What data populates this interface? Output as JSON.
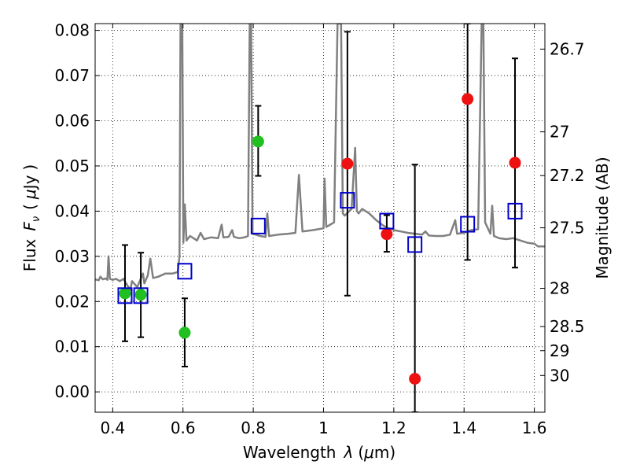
{
  "chart_data": {
    "type": "scatter",
    "xlabel_parts": [
      "Wavelength",
      "λ",
      "(",
      "μ",
      "m)"
    ],
    "ylabel_parts": [
      "Flux",
      "F",
      "ν",
      "(",
      "μ",
      "Jy",
      ")"
    ],
    "y2label": "Magnitude (AB)",
    "xlim": [
      0.35,
      1.63
    ],
    "ylim": [
      -0.0045,
      0.0815
    ],
    "x_ticks": [
      0.4,
      0.6,
      0.8,
      1.0,
      1.2,
      1.4,
      1.6
    ],
    "x_tick_labels": [
      "0.4",
      "0.6",
      "0.8",
      "1",
      "1.2",
      "1.4",
      "1.6"
    ],
    "y_ticks": [
      0.0,
      0.01,
      0.02,
      0.03,
      0.04,
      0.05,
      0.06,
      0.07,
      0.08
    ],
    "y_tick_labels": [
      "0.00",
      "0.01",
      "0.02",
      "0.03",
      "0.04",
      "0.05",
      "0.06",
      "0.07",
      "0.08"
    ],
    "mag_ticks": [
      26.7,
      27,
      27.2,
      27.5,
      28,
      28.5,
      29,
      30
    ],
    "mag_tick_labels": [
      "26.7",
      "27",
      "27.2",
      "27.5",
      "28",
      "28.5",
      "29",
      "30"
    ],
    "grid": true,
    "colors": {
      "green": "#1fc01f",
      "red": "#ee1111",
      "blue": "#0000cc",
      "template": "#808080",
      "errorbar": "#000000"
    },
    "series": [
      {
        "marker": "circle",
        "color": "green",
        "points": [
          {
            "x": 0.435,
            "y": 0.0218,
            "ylo": 0.0112,
            "yhi": 0.0325
          },
          {
            "x": 0.48,
            "y": 0.0215,
            "ylo": 0.0121,
            "yhi": 0.0308
          },
          {
            "x": 0.605,
            "y": 0.0131,
            "ylo": 0.0056,
            "yhi": 0.0207
          },
          {
            "x": 0.814,
            "y": 0.0554,
            "ylo": 0.0478,
            "yhi": 0.0633
          }
        ]
      },
      {
        "marker": "circle",
        "color": "red",
        "points": [
          {
            "x": 1.068,
            "y": 0.0505,
            "ylo": 0.0213,
            "yhi": 0.0797
          },
          {
            "x": 1.18,
            "y": 0.0349,
            "ylo": 0.031,
            "yhi": 0.0391
          },
          {
            "x": 1.26,
            "y": 0.0029,
            "ylo": -0.0045,
            "yhi": 0.0503
          },
          {
            "x": 1.41,
            "y": 0.0648,
            "ylo": 0.0292,
            "yhi": 0.0815
          },
          {
            "x": 1.545,
            "y": 0.0507,
            "ylo": 0.0275,
            "yhi": 0.0738
          }
        ]
      },
      {
        "marker": "open-square",
        "color": "blue",
        "points": [
          {
            "x": 0.435,
            "y": 0.0213
          },
          {
            "x": 0.48,
            "y": 0.0213
          },
          {
            "x": 0.605,
            "y": 0.0267
          },
          {
            "x": 0.814,
            "y": 0.0367
          },
          {
            "x": 1.068,
            "y": 0.0424
          },
          {
            "x": 1.18,
            "y": 0.0378
          },
          {
            "x": 1.26,
            "y": 0.0326
          },
          {
            "x": 1.41,
            "y": 0.0371
          },
          {
            "x": 1.545,
            "y": 0.04
          }
        ]
      }
    ],
    "template_spectrum": [
      [
        0.35,
        0.0249
      ],
      [
        0.36,
        0.0247
      ],
      [
        0.365,
        0.0255
      ],
      [
        0.372,
        0.0249
      ],
      [
        0.38,
        0.0251
      ],
      [
        0.385,
        0.0248
      ],
      [
        0.388,
        0.03
      ],
      [
        0.392,
        0.025
      ],
      [
        0.4,
        0.0248
      ],
      [
        0.41,
        0.025
      ],
      [
        0.42,
        0.0245
      ],
      [
        0.43,
        0.025
      ],
      [
        0.44,
        0.0238
      ],
      [
        0.45,
        0.0225
      ],
      [
        0.455,
        0.0245
      ],
      [
        0.47,
        0.0232
      ],
      [
        0.486,
        0.0262
      ],
      [
        0.49,
        0.024
      ],
      [
        0.5,
        0.0258
      ],
      [
        0.507,
        0.0295
      ],
      [
        0.515,
        0.0252
      ],
      [
        0.53,
        0.0255
      ],
      [
        0.55,
        0.0262
      ],
      [
        0.57,
        0.0262
      ],
      [
        0.585,
        0.0265
      ],
      [
        0.59,
        0.03
      ],
      [
        0.593,
        0.0815
      ],
      [
        0.598,
        0.0815
      ],
      [
        0.601,
        0.033
      ],
      [
        0.605,
        0.0415
      ],
      [
        0.61,
        0.0335
      ],
      [
        0.62,
        0.0345
      ],
      [
        0.63,
        0.034
      ],
      [
        0.64,
        0.0335
      ],
      [
        0.65,
        0.0352
      ],
      [
        0.66,
        0.0338
      ],
      [
        0.68,
        0.0342
      ],
      [
        0.7,
        0.034
      ],
      [
        0.71,
        0.037
      ],
      [
        0.715,
        0.0342
      ],
      [
        0.73,
        0.0343
      ],
      [
        0.74,
        0.0358
      ],
      [
        0.745,
        0.0343
      ],
      [
        0.76,
        0.034
      ],
      [
        0.775,
        0.0342
      ],
      [
        0.785,
        0.0345
      ],
      [
        0.79,
        0.0815
      ],
      [
        0.794,
        0.0815
      ],
      [
        0.798,
        0.035
      ],
      [
        0.82,
        0.0345
      ],
      [
        0.835,
        0.0343
      ],
      [
        0.84,
        0.0395
      ],
      [
        0.845,
        0.0345
      ],
      [
        0.87,
        0.0348
      ],
      [
        0.9,
        0.035
      ],
      [
        0.92,
        0.0352
      ],
      [
        0.93,
        0.048
      ],
      [
        0.94,
        0.0355
      ],
      [
        0.97,
        0.0358
      ],
      [
        1.0,
        0.0362
      ],
      [
        1.003,
        0.0472
      ],
      [
        1.008,
        0.0365
      ],
      [
        1.03,
        0.0375
      ],
      [
        1.04,
        0.0815
      ],
      [
        1.05,
        0.0815
      ],
      [
        1.055,
        0.0395
      ],
      [
        1.06,
        0.039
      ],
      [
        1.08,
        0.0405
      ],
      [
        1.09,
        0.054
      ],
      [
        1.095,
        0.04
      ],
      [
        1.1,
        0.0395
      ],
      [
        1.11,
        0.0405
      ],
      [
        1.13,
        0.0395
      ],
      [
        1.15,
        0.038
      ],
      [
        1.17,
        0.0368
      ],
      [
        1.185,
        0.0362
      ],
      [
        1.2,
        0.0358
      ],
      [
        1.22,
        0.0355
      ],
      [
        1.24,
        0.0352
      ],
      [
        1.26,
        0.035
      ],
      [
        1.28,
        0.0348
      ],
      [
        1.29,
        0.0355
      ],
      [
        1.3,
        0.0346
      ],
      [
        1.32,
        0.0345
      ],
      [
        1.34,
        0.0345
      ],
      [
        1.36,
        0.0348
      ],
      [
        1.375,
        0.038
      ],
      [
        1.38,
        0.035
      ],
      [
        1.4,
        0.0352
      ],
      [
        1.42,
        0.0358
      ],
      [
        1.44,
        0.036
      ],
      [
        1.45,
        0.0815
      ],
      [
        1.455,
        0.0815
      ],
      [
        1.46,
        0.0375
      ],
      [
        1.475,
        0.035
      ],
      [
        1.48,
        0.0412
      ],
      [
        1.485,
        0.0345
      ],
      [
        1.5,
        0.034
      ],
      [
        1.52,
        0.0338
      ],
      [
        1.54,
        0.034
      ],
      [
        1.56,
        0.0335
      ],
      [
        1.58,
        0.033
      ],
      [
        1.6,
        0.0328
      ],
      [
        1.61,
        0.0322
      ],
      [
        1.63,
        0.0322
      ]
    ]
  }
}
